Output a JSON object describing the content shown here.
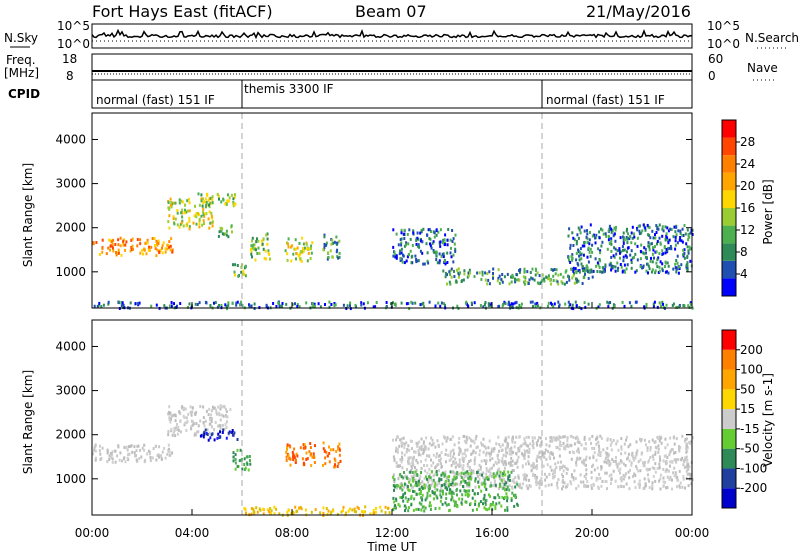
{
  "header": {
    "station": "Fort Hays East (fitACF)",
    "beam": "Beam 07",
    "date": "21/May/2016"
  },
  "noise_panel": {
    "left_label": "N.Sky",
    "right_label": "N.Search",
    "left_ticks": [
      "10^5",
      "10^0"
    ],
    "right_ticks": [
      "10^5",
      "10^0"
    ]
  },
  "freq_panel": {
    "left_label_1": "Freq.",
    "left_label_2": "[MHz]",
    "right_label": "Nave",
    "left_ticks": [
      "18",
      "8"
    ],
    "right_ticks": [
      "60",
      "0"
    ]
  },
  "cpid_panel": {
    "label": "CPID",
    "modes": [
      {
        "label": "normal (fast) 151 IF",
        "start_hour": 0,
        "end_hour": 6
      },
      {
        "label": "themis 3300 IF",
        "start_hour": 6,
        "end_hour": 18
      },
      {
        "label": "normal (fast) 151 IF",
        "start_hour": 18,
        "end_hour": 24
      }
    ]
  },
  "chart_data": [
    {
      "type": "heatmap",
      "title": "",
      "xlabel": "Time UT",
      "ylabel": "Slant Range [km]",
      "x_ticks": [
        "00:00",
        "04:00",
        "08:00",
        "12:00",
        "16:00",
        "20:00",
        "00:00"
      ],
      "xlim_hours": [
        0,
        24
      ],
      "y_ticks": [
        1000,
        2000,
        3000,
        4000
      ],
      "ylim": [
        180,
        4600
      ],
      "colorbar": {
        "label": "Power [dB]",
        "ticks": [
          "4",
          "8",
          "12",
          "16",
          "20",
          "24",
          "28"
        ],
        "colors": [
          "#0000ff",
          "#1f4fb0",
          "#2e8b57",
          "#4caf50",
          "#9acd32",
          "#ffd700",
          "#ffa500",
          "#ff7f00",
          "#ff4500",
          "#ff0000"
        ]
      },
      "echo_regions": [
        {
          "t0": 0.0,
          "t1": 3.2,
          "r0": 1400,
          "r1": 1800,
          "level": 7
        },
        {
          "t0": 3.0,
          "t1": 4.8,
          "r0": 2000,
          "r1": 2700,
          "level": 5
        },
        {
          "t0": 4.2,
          "t1": 5.8,
          "r0": 2500,
          "r1": 2800,
          "level": 4
        },
        {
          "t0": 5.0,
          "t1": 5.6,
          "r0": 1800,
          "r1": 2100,
          "level": 4
        },
        {
          "t0": 5.6,
          "t1": 6.3,
          "r0": 900,
          "r1": 1200,
          "level": 4
        },
        {
          "t0": 6.3,
          "t1": 7.1,
          "r0": 1300,
          "r1": 1900,
          "level": 4
        },
        {
          "t0": 7.7,
          "t1": 8.8,
          "r0": 1250,
          "r1": 1800,
          "level": 5
        },
        {
          "t0": 9.2,
          "t1": 9.9,
          "r0": 1300,
          "r1": 1900,
          "level": 3
        },
        {
          "t0": 12.0,
          "t1": 14.5,
          "r0": 1200,
          "r1": 2000,
          "level": 2
        },
        {
          "t0": 14.0,
          "t1": 20.0,
          "r0": 750,
          "r1": 1100,
          "level": 3
        },
        {
          "t0": 19.0,
          "t1": 24.0,
          "r0": 1000,
          "r1": 2100,
          "level": 2
        },
        {
          "t0": 0.0,
          "t1": 24.0,
          "r0": 200,
          "r1": 350,
          "level": 2
        }
      ]
    },
    {
      "type": "heatmap",
      "title": "",
      "xlabel": "Time UT",
      "ylabel": "Slant Range [km]",
      "x_ticks": [
        "00:00",
        "04:00",
        "08:00",
        "12:00",
        "16:00",
        "20:00",
        "00:00"
      ],
      "xlim_hours": [
        0,
        24
      ],
      "y_ticks": [
        1000,
        2000,
        3000,
        4000
      ],
      "ylim": [
        180,
        4600
      ],
      "colorbar": {
        "label": "Velocity [m s-1]",
        "ticks": [
          "200",
          "100",
          "50",
          "15",
          "-15",
          "-50",
          "-100",
          "-200"
        ],
        "colors": [
          "#0000cc",
          "#2040a0",
          "#2e8b57",
          "#66cc33",
          "#cccccc",
          "#ffd700",
          "#ffa500",
          "#ff7f00",
          "#ff0000"
        ]
      },
      "echo_regions": [
        {
          "t0": 0.0,
          "t1": 3.2,
          "r0": 1400,
          "r1": 1800,
          "vel": "grey"
        },
        {
          "t0": 3.0,
          "t1": 5.5,
          "r0": 2000,
          "r1": 2700,
          "vel": "grey"
        },
        {
          "t0": 4.3,
          "t1": 5.8,
          "r0": 1900,
          "r1": 2150,
          "vel": "blue"
        },
        {
          "t0": 5.6,
          "t1": 6.3,
          "r0": 1200,
          "r1": 1700,
          "vel": "green"
        },
        {
          "t0": 7.7,
          "t1": 8.9,
          "r0": 1300,
          "r1": 1850,
          "vel": "orange"
        },
        {
          "t0": 9.2,
          "t1": 9.9,
          "r0": 1300,
          "r1": 1850,
          "vel": "orange"
        },
        {
          "t0": 12.0,
          "t1": 24.0,
          "r0": 800,
          "r1": 2000,
          "vel": "grey"
        },
        {
          "t0": 6.0,
          "t1": 12.0,
          "r0": 200,
          "r1": 400,
          "vel": "yellow"
        },
        {
          "t0": 12.0,
          "t1": 17.0,
          "r0": 300,
          "r1": 1200,
          "vel": "green"
        }
      ]
    }
  ],
  "marker_hours": [
    6,
    18
  ]
}
